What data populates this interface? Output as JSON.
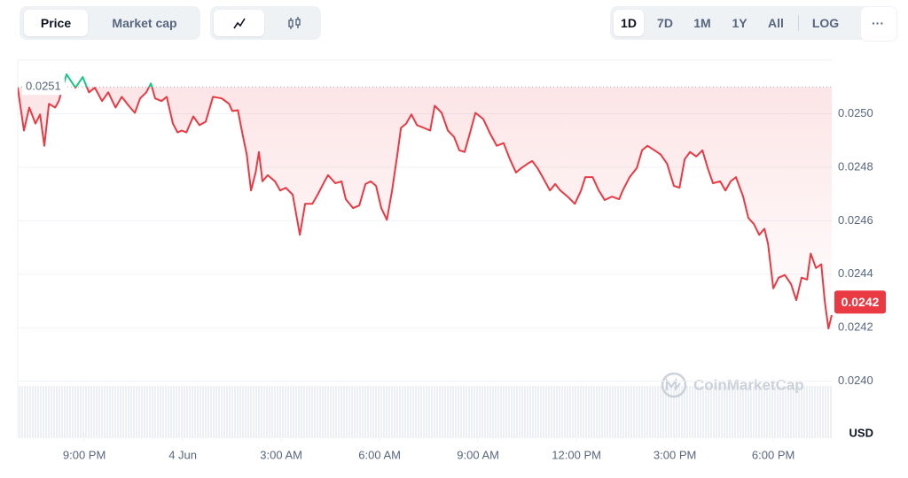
{
  "toolbar": {
    "tabs": [
      "Price",
      "Market cap"
    ],
    "ranges": [
      "1D",
      "7D",
      "1M",
      "1Y",
      "All"
    ],
    "log": "LOG",
    "more": "···"
  },
  "chart_data": {
    "type": "line",
    "watermark": "CoinMarketCap",
    "unit": "USD",
    "color": "#ea3943",
    "up_color": "#16c784",
    "reference_line": 0.0251,
    "current_price": 0.0242,
    "xlim": [
      -5.03,
      19.78
    ],
    "xticks": [
      {
        "value": -3,
        "label": "9:00 PM"
      },
      {
        "value": 0,
        "label": "4 Jun"
      },
      {
        "value": 3,
        "label": "3:00 AM"
      },
      {
        "value": 6,
        "label": "6:00 AM"
      },
      {
        "value": 9,
        "label": "9:00 AM"
      },
      {
        "value": 12,
        "label": "12:00 PM"
      },
      {
        "value": 15,
        "label": "3:00 PM"
      },
      {
        "value": 18,
        "label": "6:00 PM"
      }
    ],
    "ylim": [
      0.023787,
      0.0252
    ],
    "yticks": [
      {
        "value": 0.024,
        "label": "0.0240"
      },
      0.0242,
      0.0244,
      0.0246,
      0.0248,
      {
        "value": 0.025,
        "label": "0.0250"
      }
    ],
    "grid": true,
    "x": [
      -5.03,
      -4.84,
      -4.68,
      -4.49,
      -4.35,
      -4.22,
      -4.08,
      -3.89,
      -3.78,
      -3.54,
      -3.27,
      -3.05,
      -2.86,
      -2.68,
      -2.46,
      -2.27,
      -2.05,
      -1.86,
      -1.65,
      -1.46,
      -1.3,
      -1.11,
      -0.97,
      -0.84,
      -0.65,
      -0.49,
      -0.3,
      -0.16,
      -0.03,
      0.11,
      0.32,
      0.51,
      0.7,
      0.92,
      1.19,
      1.41,
      1.51,
      1.68,
      1.81,
      1.95,
      2.08,
      2.22,
      2.32,
      2.43,
      2.59,
      2.81,
      2.97,
      3.14,
      3.35,
      3.57,
      3.73,
      3.95,
      4.11,
      4.32,
      4.43,
      4.65,
      4.84,
      4.97,
      5.19,
      5.38,
      5.57,
      5.73,
      5.89,
      6.05,
      6.22,
      6.38,
      6.54,
      6.65,
      6.81,
      6.97,
      7.14,
      7.35,
      7.54,
      7.68,
      7.89,
      8.08,
      8.27,
      8.43,
      8.59,
      8.76,
      8.92,
      9.16,
      9.35,
      9.57,
      9.78,
      9.97,
      10.16,
      10.32,
      10.51,
      10.65,
      10.81,
      10.97,
      11.19,
      11.35,
      11.51,
      11.73,
      11.95,
      12.14,
      12.27,
      12.49,
      12.68,
      12.86,
      13.08,
      13.3,
      13.41,
      13.62,
      13.84,
      14.0,
      14.16,
      14.38,
      14.57,
      14.76,
      14.97,
      15.14,
      15.3,
      15.46,
      15.65,
      15.84,
      16.0,
      16.16,
      16.38,
      16.54,
      16.7,
      16.86,
      17.08,
      17.24,
      17.41,
      17.57,
      17.73,
      17.84,
      18.0,
      18.16,
      18.35,
      18.54,
      18.7,
      18.86,
      19.03,
      19.14,
      19.3,
      19.46,
      19.57,
      19.68,
      19.78
    ],
    "values": [
      0.025097,
      0.024937,
      0.025023,
      0.024963,
      0.024997,
      0.02488,
      0.025037,
      0.025023,
      0.025047,
      0.025147,
      0.025097,
      0.025137,
      0.02508,
      0.025097,
      0.025047,
      0.02508,
      0.025023,
      0.025063,
      0.02503,
      0.025003,
      0.025057,
      0.02508,
      0.025113,
      0.025057,
      0.025047,
      0.025063,
      0.024963,
      0.02493,
      0.024937,
      0.02493,
      0.02499,
      0.024957,
      0.02497,
      0.025063,
      0.025057,
      0.025037,
      0.02501,
      0.025013,
      0.02493,
      0.024847,
      0.024713,
      0.02478,
      0.024857,
      0.024747,
      0.02477,
      0.024747,
      0.024713,
      0.024723,
      0.024697,
      0.024547,
      0.024663,
      0.024663,
      0.024697,
      0.024747,
      0.02477,
      0.02474,
      0.024747,
      0.02468,
      0.024647,
      0.024657,
      0.024737,
      0.024747,
      0.02473,
      0.024647,
      0.024603,
      0.024713,
      0.024847,
      0.024947,
      0.024963,
      0.024997,
      0.024957,
      0.024947,
      0.024937,
      0.02503,
      0.025003,
      0.024937,
      0.024913,
      0.024863,
      0.024857,
      0.02493,
      0.025003,
      0.02498,
      0.02493,
      0.02488,
      0.02489,
      0.02483,
      0.02478,
      0.024797,
      0.024813,
      0.024823,
      0.024797,
      0.024763,
      0.024713,
      0.024737,
      0.024713,
      0.02469,
      0.024663,
      0.024713,
      0.024763,
      0.024763,
      0.024713,
      0.024677,
      0.02469,
      0.02468,
      0.024713,
      0.024763,
      0.024797,
      0.024863,
      0.02488,
      0.024863,
      0.024847,
      0.024813,
      0.02473,
      0.024723,
      0.02483,
      0.024857,
      0.02484,
      0.024863,
      0.024797,
      0.02474,
      0.024747,
      0.024713,
      0.024747,
      0.024763,
      0.02469,
      0.02461,
      0.024587,
      0.024547,
      0.02457,
      0.024513,
      0.024347,
      0.024387,
      0.024397,
      0.024363,
      0.024303,
      0.024387,
      0.02438,
      0.024477,
      0.024423,
      0.024437,
      0.024297,
      0.024197,
      0.024247
    ]
  }
}
